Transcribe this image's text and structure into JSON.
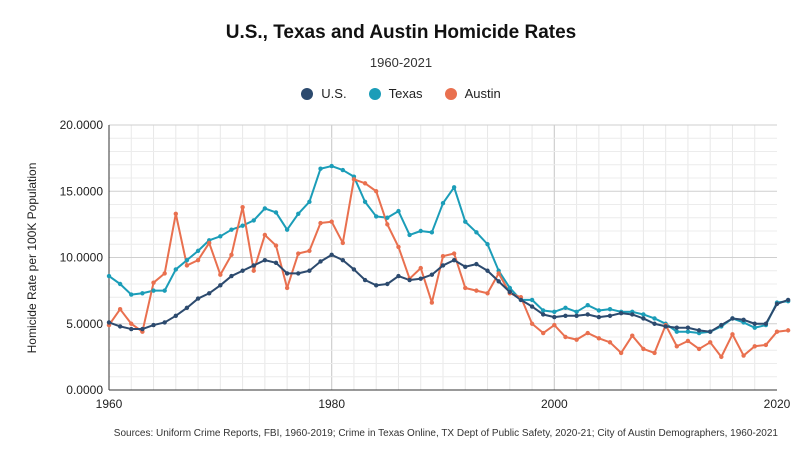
{
  "chart_data": {
    "type": "line",
    "title": "U.S., Texas and Austin Homicide Rates",
    "subtitle": "1960-2021",
    "ylabel": "Homicide Rate per 100K Population",
    "xlabel": "",
    "xlim": [
      1960,
      2020
    ],
    "ylim": [
      0,
      20
    ],
    "x_ticks": [
      "1960",
      "1980",
      "2000",
      "2020"
    ],
    "x_tick_values": [
      1960,
      1980,
      2000,
      2020
    ],
    "y_ticks": [
      "0.0000",
      "5.0000",
      "10.0000",
      "15.0000",
      "20.0000"
    ],
    "y_tick_values": [
      0,
      5,
      10,
      15,
      20
    ],
    "legend_position": "top-center",
    "grid": "vertical and horizontal",
    "x": [
      1960,
      1961,
      1962,
      1963,
      1964,
      1965,
      1966,
      1967,
      1968,
      1969,
      1970,
      1971,
      1972,
      1973,
      1974,
      1975,
      1976,
      1977,
      1978,
      1979,
      1980,
      1981,
      1982,
      1983,
      1984,
      1985,
      1986,
      1987,
      1988,
      1989,
      1990,
      1991,
      1992,
      1993,
      1994,
      1995,
      1996,
      1997,
      1998,
      1999,
      2000,
      2001,
      2002,
      2003,
      2004,
      2005,
      2006,
      2007,
      2008,
      2009,
      2010,
      2011,
      2012,
      2013,
      2014,
      2015,
      2016,
      2017,
      2018,
      2019,
      2020,
      2021
    ],
    "series": [
      {
        "name": "U.S.",
        "color": "#2c4a6e",
        "values": [
          5.1,
          4.8,
          4.6,
          4.6,
          4.9,
          5.1,
          5.6,
          6.2,
          6.9,
          7.3,
          7.9,
          8.6,
          9.0,
          9.4,
          9.8,
          9.6,
          8.8,
          8.8,
          9.0,
          9.7,
          10.2,
          9.8,
          9.1,
          8.3,
          7.9,
          8.0,
          8.6,
          8.3,
          8.4,
          8.7,
          9.4,
          9.8,
          9.3,
          9.5,
          9.0,
          8.2,
          7.4,
          6.8,
          6.3,
          5.7,
          5.5,
          5.6,
          5.6,
          5.7,
          5.5,
          5.6,
          5.8,
          5.7,
          5.4,
          5.0,
          4.8,
          4.7,
          4.7,
          4.5,
          4.4,
          4.9,
          5.4,
          5.3,
          5.0,
          5.0,
          6.5,
          6.8
        ]
      },
      {
        "name": "Texas",
        "color": "#1b9db8",
        "values": [
          8.6,
          8.0,
          7.2,
          7.3,
          7.5,
          7.5,
          9.1,
          9.8,
          10.5,
          11.3,
          11.6,
          12.1,
          12.4,
          12.8,
          13.7,
          13.4,
          12.1,
          13.3,
          14.2,
          16.7,
          16.9,
          16.6,
          16.1,
          14.2,
          13.1,
          13.0,
          13.5,
          11.7,
          12.0,
          11.9,
          14.1,
          15.3,
          12.7,
          11.9,
          11.0,
          9.0,
          7.7,
          6.8,
          6.8,
          6.0,
          5.9,
          6.2,
          5.9,
          6.4,
          6.0,
          6.1,
          5.9,
          5.9,
          5.7,
          5.4,
          5.0,
          4.4,
          4.4,
          4.3,
          4.4,
          4.8,
          5.4,
          5.1,
          4.7,
          4.9,
          6.6,
          6.7
        ]
      },
      {
        "name": "Austin",
        "color": "#e9704f",
        "values": [
          4.9,
          6.1,
          5.0,
          4.4,
          8.1,
          8.8,
          13.3,
          9.4,
          9.8,
          11.1,
          8.7,
          10.2,
          13.8,
          9.0,
          11.7,
          10.9,
          7.7,
          10.3,
          10.5,
          12.6,
          12.7,
          11.1,
          15.9,
          15.6,
          15.0,
          12.5,
          10.8,
          8.4,
          9.2,
          6.6,
          10.1,
          10.3,
          7.7,
          7.5,
          7.3,
          8.8,
          7.3,
          7.0,
          5.0,
          4.3,
          4.9,
          4.0,
          3.8,
          4.3,
          3.9,
          3.6,
          2.8,
          4.1,
          3.1,
          2.8,
          4.9,
          3.3,
          3.7,
          3.1,
          3.6,
          2.5,
          4.2,
          2.6,
          3.3,
          3.4,
          4.4,
          4.5
        ]
      }
    ]
  },
  "source": "Sources: Uniform Crime Reports, FBI, 1960-2019; Crime in Texas Online, TX Dept of Public Safety, 2020-21; City of Austin Demographers, 1960-2021"
}
